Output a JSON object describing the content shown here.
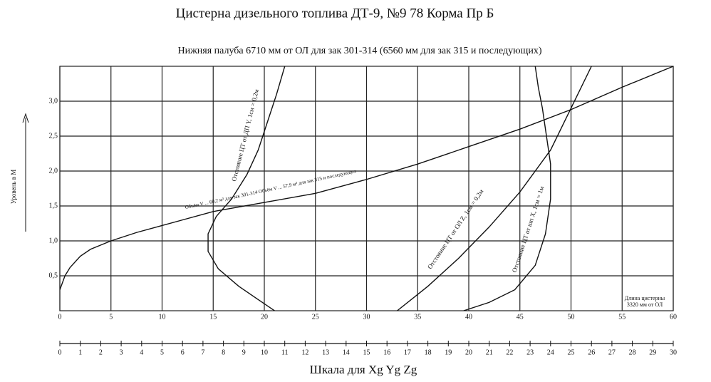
{
  "chart_data": {
    "type": "line",
    "title": "Цистерна дизельного топлива ДТ-9, №9   78 Корма Пр Б",
    "subtitle": "Нижняя палуба 6710 мм от ОЛ для зак 301-314 (6560 мм для зак 315 и последующих)",
    "ylabel": "Уровень в М",
    "x2label": "Шкала для Xg Yg Zg",
    "xlim": [
      0,
      60
    ],
    "xticks": [
      0,
      5,
      10,
      15,
      20,
      25,
      30,
      35,
      40,
      45,
      50,
      55,
      60
    ],
    "x2lim": [
      0,
      30
    ],
    "x2ticks": [
      0,
      1,
      2,
      3,
      4,
      5,
      6,
      7,
      8,
      9,
      10,
      11,
      12,
      13,
      14,
      15,
      16,
      17,
      18,
      19,
      20,
      21,
      22,
      23,
      24,
      25,
      26,
      27,
      28,
      29,
      30
    ],
    "ylim": [
      0,
      3.5
    ],
    "yticks": [
      {
        "value": 0.5,
        "label": "0,5"
      },
      {
        "value": 1.0,
        "label": "1,0"
      },
      {
        "value": 1.5,
        "label": "1,5"
      },
      {
        "value": 2.0,
        "label": "2,0"
      },
      {
        "value": 2.5,
        "label": "2,5"
      },
      {
        "value": 3.0,
        "label": "3,0"
      }
    ],
    "grid": true,
    "series": [
      {
        "name": "Объём V ... 60,2 м³ для зак 301-314   Объём V ... 57,9 м³ для зак 315 и последующих",
        "color": "#111111",
        "x": [
          0,
          0.5,
          1,
          2,
          3,
          5,
          7.5,
          10,
          15,
          20,
          25,
          30,
          35,
          40,
          45,
          50,
          55,
          60
        ],
        "values": [
          0.3,
          0.5,
          0.62,
          0.78,
          0.88,
          1.0,
          1.12,
          1.22,
          1.42,
          1.55,
          1.68,
          1.88,
          2.1,
          2.35,
          2.6,
          2.88,
          3.2,
          3.5
        ]
      },
      {
        "name": "Отстояние ЦТ от ДП Y, 1см = 0,2м",
        "color": "#111111",
        "x": [
          21,
          19.5,
          17.5,
          15.5,
          14.5,
          14.5,
          15.3,
          16.8,
          18.3,
          19.4,
          20.3,
          21.2,
          22
        ],
        "values": [
          0,
          0.15,
          0.35,
          0.6,
          0.85,
          1.1,
          1.35,
          1.6,
          1.95,
          2.3,
          2.7,
          3.1,
          3.5
        ]
      },
      {
        "name": "Отстояние ЦТ от ОЛ Z, 1см = 0,2м",
        "color": "#111111",
        "x": [
          33,
          36,
          39,
          42,
          45,
          48,
          50,
          52
        ],
        "values": [
          0,
          0.35,
          0.75,
          1.2,
          1.7,
          2.3,
          2.9,
          3.5
        ]
      },
      {
        "name": "Отстояние ЦТ от шп X, 1см = 1м",
        "color": "#111111",
        "x": [
          39.5,
          42,
          44.5,
          46.5,
          47.5,
          48,
          48,
          47.6,
          47.2,
          46.8,
          46.5
        ],
        "values": [
          0,
          0.12,
          0.3,
          0.65,
          1.1,
          1.6,
          2.1,
          2.5,
          2.9,
          3.2,
          3.5
        ]
      }
    ],
    "annotations": [
      "Длина цистерны",
      "3320 мм от ОЛ"
    ]
  }
}
